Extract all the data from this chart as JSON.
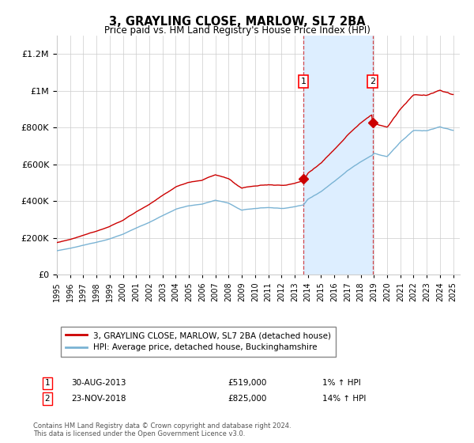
{
  "title": "3, GRAYLING CLOSE, MARLOW, SL7 2BA",
  "subtitle": "Price paid vs. HM Land Registry's House Price Index (HPI)",
  "legend_line1": "3, GRAYLING CLOSE, MARLOW, SL7 2BA (detached house)",
  "legend_line2": "HPI: Average price, detached house, Buckinghamshire",
  "annotation1_label": "1",
  "annotation1_date": "30-AUG-2013",
  "annotation1_price": "£519,000",
  "annotation1_hpi": "1% ↑ HPI",
  "annotation1_year": 2013.67,
  "annotation1_value": 519000,
  "annotation2_label": "2",
  "annotation2_date": "23-NOV-2018",
  "annotation2_price": "£825,000",
  "annotation2_hpi": "14% ↑ HPI",
  "annotation2_year": 2018.9,
  "annotation2_value": 825000,
  "footer": "Contains HM Land Registry data © Crown copyright and database right 2024.\nThis data is licensed under the Open Government Licence v3.0.",
  "hpi_color": "#7ab3d4",
  "price_color": "#cc0000",
  "shade_color": "#ddeeff",
  "grid_color": "#cccccc",
  "ylim": [
    0,
    1300000
  ],
  "xlim_start": 1995,
  "xlim_end": 2025.5
}
